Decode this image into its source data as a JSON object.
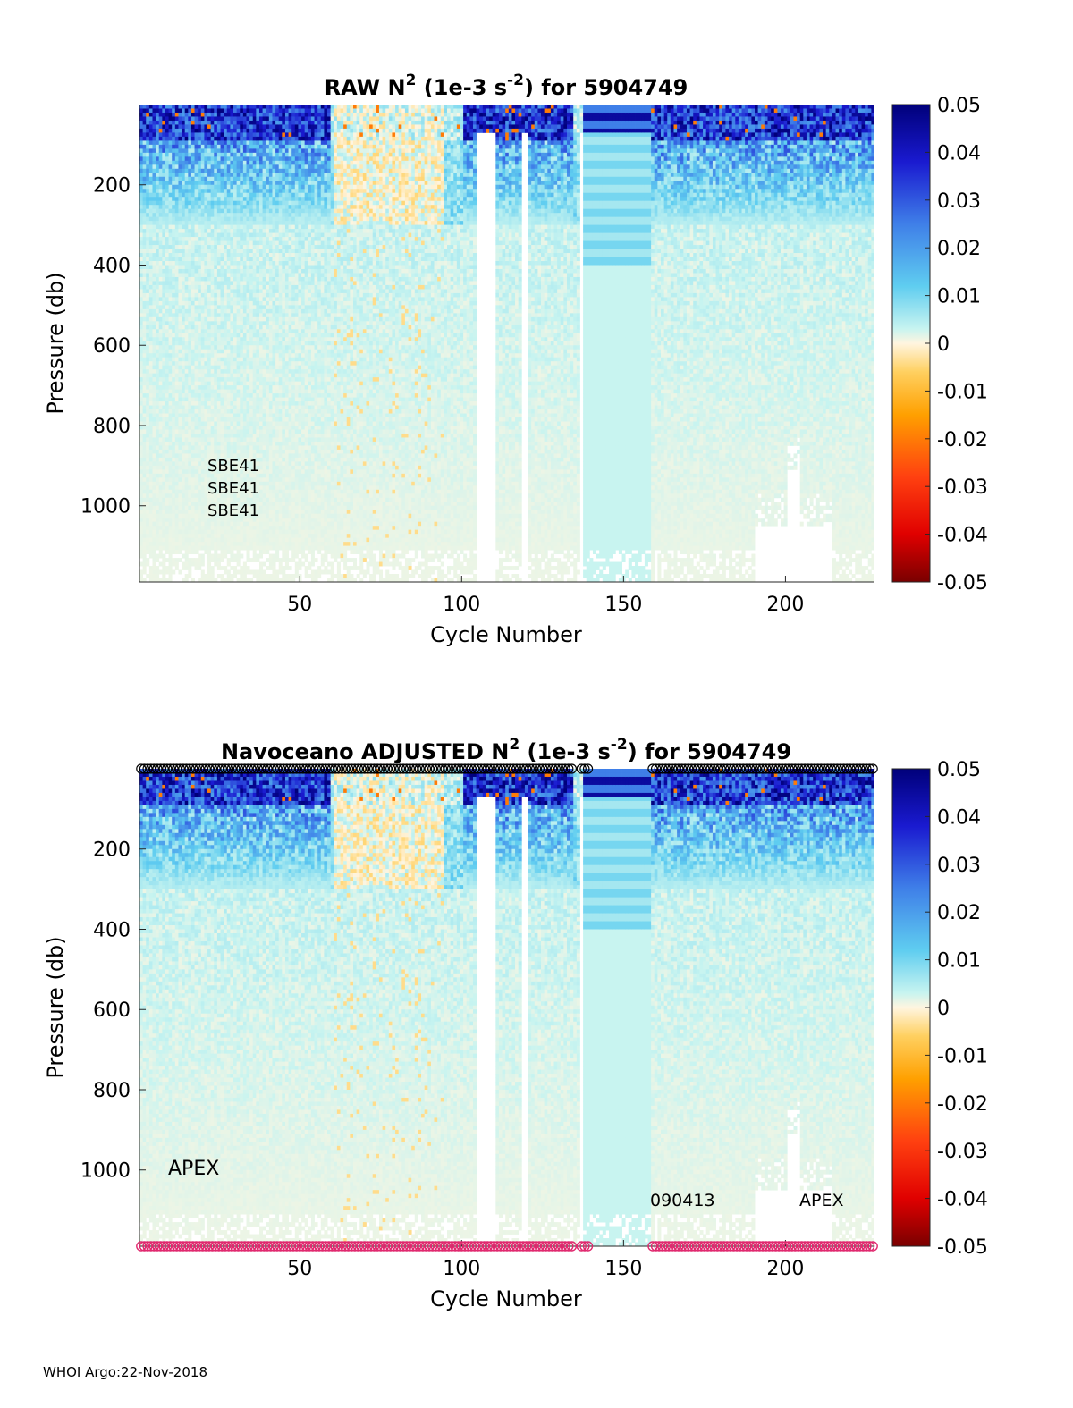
{
  "footer": "WHOI Argo:22-Nov-2018",
  "colorbar": {
    "ticks": [
      "0.05",
      "0.04",
      "0.03",
      "0.02",
      "0.01",
      "0",
      "-0.01",
      "-0.02",
      "-0.03",
      "-0.04",
      "-0.05"
    ],
    "range": [
      -0.05,
      0.05
    ]
  },
  "chart_data": [
    {
      "type": "heatmap",
      "title": "RAW N",
      "title_sup": "2",
      "title_mid": " (1e-3 s",
      "title_sup2": "-2",
      "title_end": ") for 5904749",
      "xlabel": "Cycle Number",
      "ylabel": "Pressure (db)",
      "xticks": [
        "50",
        "100",
        "150",
        "200"
      ],
      "xtick_values": [
        50,
        100,
        150,
        200
      ],
      "yticks": [
        "200",
        "400",
        "600",
        "800",
        "1000"
      ],
      "ytick_values": [
        200,
        400,
        600,
        800,
        1000
      ],
      "xlim": [
        1,
        227
      ],
      "ylim": [
        1190,
        0
      ],
      "annotations": [
        "SBE41",
        "SBE41",
        "SBE41"
      ],
      "gap_cycles": [
        105,
        106,
        107,
        108,
        109,
        110,
        119,
        120,
        137
      ]
    },
    {
      "type": "heatmap",
      "title": "Navoceano  ADJUSTED N",
      "title_sup": "2",
      "title_mid": " (1e-3 s",
      "title_sup2": "-2",
      "title_end": ") for 5904749",
      "xlabel": "Cycle Number",
      "ylabel": "Pressure (db)",
      "xticks": [
        "50",
        "100",
        "150",
        "200"
      ],
      "xtick_values": [
        50,
        100,
        150,
        200
      ],
      "yticks": [
        "200",
        "400",
        "600",
        "800",
        "1000"
      ],
      "ytick_values": [
        200,
        400,
        600,
        800,
        1000
      ],
      "xlim": [
        1,
        227
      ],
      "ylim": [
        1190,
        0
      ],
      "annotations": [
        "APEX",
        "090413",
        "APEX"
      ],
      "marker_color_top": "#000000",
      "marker_color_bottom": "#e0286e",
      "missing_marker_cycles": [
        135,
        136,
        140,
        141,
        142,
        143,
        144,
        145,
        146,
        147,
        148,
        149,
        150,
        151,
        152,
        153,
        154,
        155,
        156,
        157,
        158
      ]
    }
  ]
}
